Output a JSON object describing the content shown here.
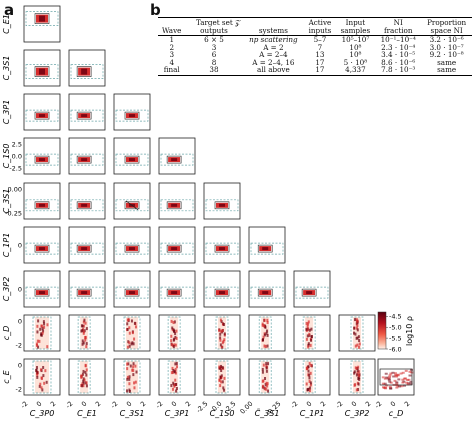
{
  "panel_a_label": "a",
  "panel_b_label": "b",
  "chart_data": {
    "type": "corner-plot",
    "parameters": [
      "C_{E1}",
      "C_{3S1}",
      "C_{3P1}",
      "C_{1S0}",
      "C_{3S1}",
      "C_{1P1}",
      "C_{3P2}",
      "c_D",
      "c_E"
    ],
    "row_labels": [
      "C_E1",
      "C_3S1",
      "C_3P1",
      "C_1S0",
      "C_3S1",
      "C_1P1",
      "C_3P2",
      "c_D",
      "c_E"
    ],
    "col_labels": [
      "C_3P0",
      "C_E1",
      "C_3S1",
      "C_3P1",
      "C_1S0",
      "C̃_3S1",
      "C_1P1",
      "C_3P2",
      "c_D"
    ],
    "y_ticks": {
      "C_1S0": [
        "2.5",
        "0.0",
        "-2.5"
      ],
      "C_3S1_tilde": [
        "0.00",
        "-0.25"
      ],
      "C_1P1": [
        "0"
      ],
      "C_3P2": [
        "0"
      ],
      "c_D": [
        "0",
        "-2"
      ],
      "c_E": [
        "0",
        "-2"
      ]
    },
    "x_ticks": [
      [
        "-2",
        "0",
        "2"
      ],
      [
        "-2",
        "0",
        "2"
      ],
      [
        "-2",
        "0",
        "2"
      ],
      [
        "-2",
        "0",
        "2"
      ],
      [
        "-2.5",
        "0.0",
        "2.5"
      ],
      [
        "0.00",
        "-0.25"
      ],
      [
        "-2",
        "0",
        "2"
      ],
      [
        "-2",
        "0",
        "2"
      ],
      [
        "-2",
        "0",
        "2"
      ]
    ],
    "colorbar": {
      "label": "log10 ρ",
      "ticks": [
        "-4.5",
        "-5.0",
        "-5.5",
        "-6.0"
      ],
      "range": [
        -6.0,
        -4.3
      ],
      "colormap": "reds"
    },
    "colors": {
      "density_high": "#6e0010",
      "density_mid": "#d62c2c",
      "density_low": "#fde0d5",
      "box_outline": "#222222",
      "dashed": "#6aa6a8"
    }
  },
  "table": {
    "header_row1": [
      "",
      "Target set 𝒵",
      "",
      "Active",
      "Input",
      "NI",
      "Proportion"
    ],
    "header_row2": [
      "Wave",
      "outputs",
      "systems",
      "inputs",
      "samples",
      "fraction",
      "space NI"
    ],
    "rows": [
      [
        "1",
        "6 × 5",
        "np scattering",
        "5–7",
        "10⁵–10⁷",
        "10⁻¹–10⁻⁴",
        "3.2 · 10⁻⁶"
      ],
      [
        "2",
        "3",
        "A = 2",
        "7",
        "10⁸",
        "2.3 · 10⁻⁴",
        "3.0 · 10⁻⁷"
      ],
      [
        "3",
        "6",
        "A = 2–4",
        "13",
        "10⁸",
        "3.4 · 10⁻⁵",
        "9.2 · 10⁻⁸"
      ],
      [
        "4",
        "8",
        "A = 2–4, 16",
        "17",
        "5 · 10⁸",
        "8.6 · 10⁻⁶",
        "same"
      ],
      [
        "final",
        "38",
        "all above",
        "17",
        "4,337",
        "7.8 · 10⁻³",
        "same"
      ]
    ]
  }
}
